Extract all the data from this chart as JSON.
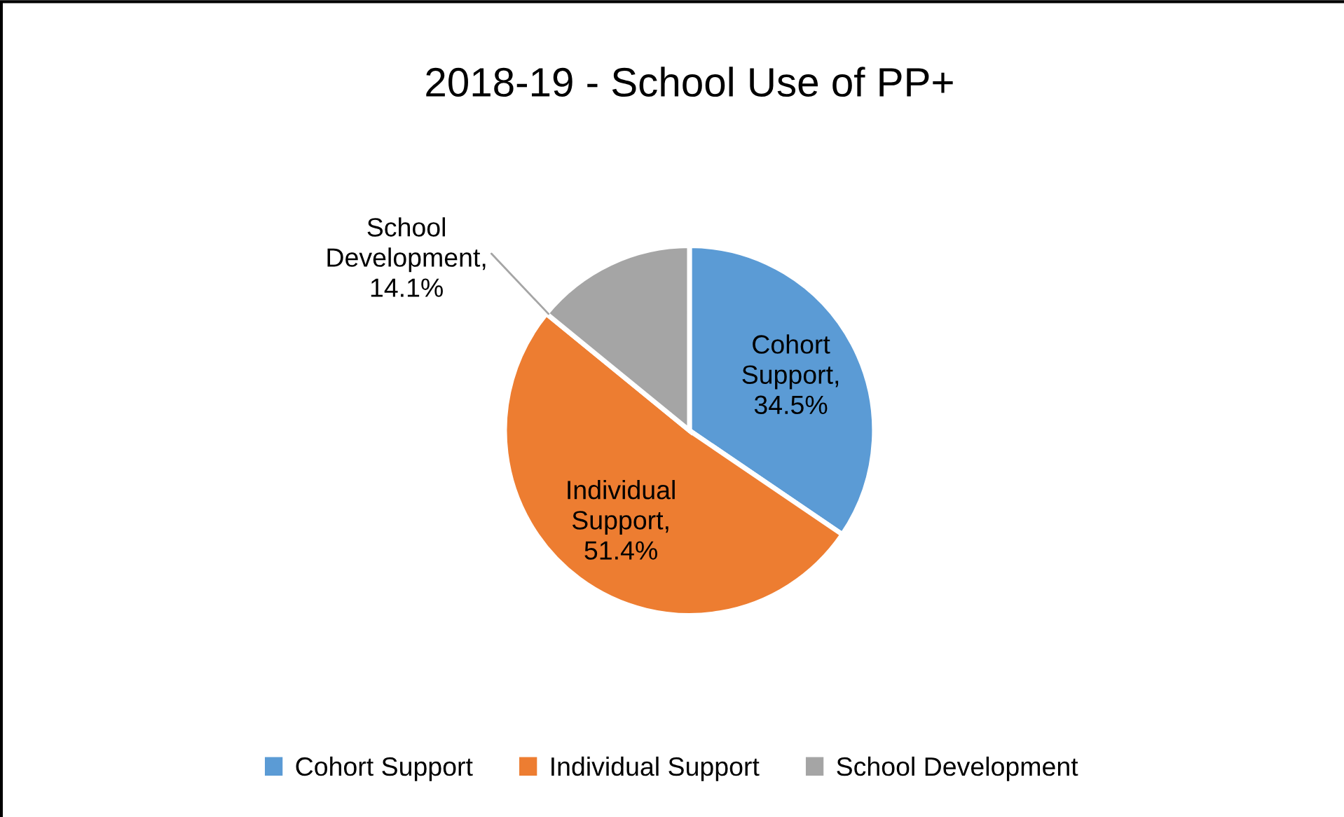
{
  "chart_data": {
    "type": "pie",
    "title": "2018-19 - School Use of PP+",
    "categories": [
      "Cohort Support",
      "Individual Support",
      "School Development"
    ],
    "values": [
      34.5,
      51.4,
      14.1
    ],
    "colors": [
      "#5b9bd5",
      "#ed7d31",
      "#a5a5a5"
    ],
    "value_labels": [
      "Cohort Support, 34.5%",
      "Individual Support, 51.4%",
      "School Development, 14.1%"
    ],
    "legend": "bottom"
  }
}
